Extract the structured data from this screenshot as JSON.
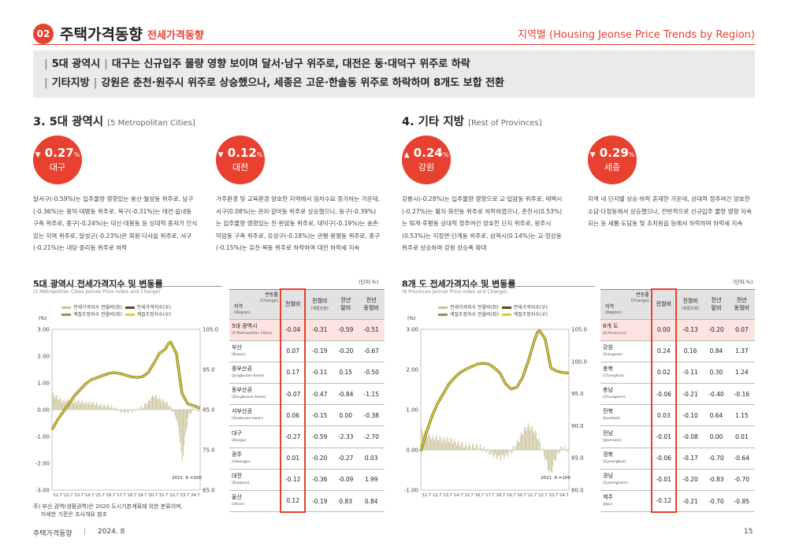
{
  "header": {
    "section_no": "02",
    "title": "주택가격동향",
    "subtitle": "전세가격동향",
    "right": "지역별 (Housing Jeonse Price Trends by Region)"
  },
  "summary": [
    {
      "tag": "5대 광역시",
      "text": "대구는 신규입주 물량 영향 보이며 달서·남구 위주로, 대전은 동·대덕구 위주로 하락"
    },
    {
      "tag": "기타지방",
      "text": "강원은 춘천·원주시 위주로 상승했으나, 세종은 고운·한솔동 위주로 하락하며 8개도 보합 전환"
    }
  ],
  "left": {
    "title": "3. 5대 광역시",
    "title_en": "[5 Metropolitan Cities]",
    "cards": [
      {
        "arrow": "▼",
        "value": "0.27",
        "unit": "%",
        "region": "대구",
        "text": "달서구(-0.59%)는 입주물량 영향있는 용산·월성동 위주로, 남구(-0.36%)는 봉덕·대명동 위주로, 북구(-0.31%)는 태전·읍내동 구축 위주로, 중구(-0.24%)는 대신·대봉동 등 상대적 중저가 인식있는 지역 위주로, 달성군(-0.23%)은 화원·다사읍 위주로, 서구(-0.21%)는 내당·중리동 위주로 하락"
      },
      {
        "arrow": "▼",
        "value": "0.12",
        "unit": "%",
        "region": "대전",
        "text": "거주환경 및 교육환경 양호한 지역에서 임차수요 증가하는 가운데, 서구(0.08%)는 관저·갈마동 위주로 상승했으나, 동구(-0.39%)는 입주물량 영향있는 천·판암동 위주로, 대덕구(-0.19%)는 송촌·덕암동 구축 위주로, 유성구(-0.18%)는 관평·봉명동 위주로, 중구(-0.15%)는 유천·목동 위주로 하락하며 대전 하락세 지속"
      }
    ],
    "chart": {
      "title": "5대 광역시 전세가격지수 및 변동률",
      "subtitle": "(5 Metropolitan Cities Jeonse Price Index and Change)",
      "legend": [
        "전세가격지수 전월비(좌)",
        "전세가격지수(우)",
        "계절조정지수 전월비(좌)",
        "계절조정지수(우)"
      ],
      "left_unit": "(%)",
      "note": "2021. 6 =100"
    },
    "table": {
      "unit": "(단위:%)",
      "head": {
        "change": "변동률",
        "change_en": "(Change)",
        "region": "지역",
        "region_en": "(Region)",
        "c1": "전월비",
        "c2": "전월비",
        "c2_sub": "(계절조정)",
        "c3": "전년\n말비",
        "c4": "전년\n동월비"
      },
      "rows": [
        {
          "name": "5대 광역시",
          "en": "(5 Metropolitan Cities)",
          "v": [
            "-0.04",
            "-0.31",
            "-0.59",
            "-0.51"
          ],
          "hl": true
        },
        {
          "name": "부산",
          "en": "(Busan)",
          "v": [
            "0.07",
            "-0.19",
            "-0.20",
            "-0.67"
          ]
        },
        {
          "name": "중부산권",
          "en": "(Jungbusan-kwon)",
          "v": [
            "0.17",
            "-0.11",
            "0.15",
            "-0.50"
          ]
        },
        {
          "name": "동부산권",
          "en": "(Dongbusan-kwon)",
          "v": [
            "-0.07",
            "-0.47",
            "-0.84",
            "-1.15"
          ]
        },
        {
          "name": "서부산권",
          "en": "(Seobusan-kwon)",
          "v": [
            "0.06",
            "-0.15",
            "0.00",
            "-0.38"
          ]
        },
        {
          "name": "대구",
          "en": "(Daegu)",
          "v": [
            "-0.27",
            "-0.59",
            "-2.33",
            "-2.70"
          ]
        },
        {
          "name": "광주",
          "en": "(Gwangju)",
          "v": [
            "0.01",
            "-0.20",
            "-0.27",
            "0.03"
          ]
        },
        {
          "name": "대전",
          "en": "(Daejeon)",
          "v": [
            "-0.12",
            "-0.36",
            "-0.09",
            "1.99"
          ]
        },
        {
          "name": "울산",
          "en": "(Ulsan)",
          "v": [
            "0.12",
            "-0.19",
            "0.83",
            "0.84"
          ]
        }
      ]
    },
    "footnote": [
      "주) 부산 권역(생활권역)은 2020 도시기본계획에 의한 분류이며,",
      "자세한 기준은 조사개요 참조"
    ]
  },
  "right": {
    "title": "4. 기타 지방",
    "title_en": "[Rest of Provinces]",
    "cards": [
      {
        "arrow": "▲",
        "value": "0.24",
        "unit": "%",
        "region": "강원",
        "text": "강릉시(-0.28%)는 입주물량 영향으로 교·입암동 위주로, 태백시(-0.27%)는 황지·화전동 위주로 하락하였으나, 춘천시(0.53%)는 퇴계·후평동 상대적 정주여건 양호한 단지 위주로, 원주시(0.53%)는 지정면·단계동 위주로, 삼척시(0.14%)는 교·정상동 위주로 상승하며 강원 상승폭 확대"
      },
      {
        "arrow": "▼",
        "value": "0.29",
        "unit": "%",
        "region": "세종",
        "text": "지역 내 단지별 상승·하락 혼재한 가운데, 상대적 정주여건 양호한 소담·다정동에서 상승했으나, 전반적으로 신규입주 물량 영향 지속되는 등 새롬·도담동 및 조치원읍 등에서 하락하며 하락세 지속"
      }
    ],
    "chart": {
      "title": "8개 도 전세가격지수 및 변동률",
      "subtitle": "(8 Provinces Jeonse Price Index and Change)",
      "legend": [
        "전세가격지수 전월비(좌)",
        "전세가격지수(우)",
        "계절조정지수 전월비(좌)",
        "계절조정지수(우)"
      ],
      "left_unit": "(%)",
      "note": "2021. 6 =100"
    },
    "table": {
      "unit": "(단위:%)",
      "head": {
        "change": "변동률",
        "change_en": "(Change)",
        "region": "지역",
        "region_en": "(Region)",
        "c1": "전월비",
        "c2": "전월비",
        "c2_sub": "(계절조정)",
        "c3": "전년\n말비",
        "c4": "전년\n동월비"
      },
      "rows": [
        {
          "name": "8개 도",
          "en": "(8 Provinces)",
          "v": [
            "0.00",
            "-0.13",
            "-0.20",
            "0.07"
          ],
          "hl": true
        },
        {
          "name": "강원",
          "en": "(Gangwon)",
          "v": [
            "0.24",
            "0.16",
            "0.84",
            "1.37"
          ]
        },
        {
          "name": "충북",
          "en": "(Chungbuk)",
          "v": [
            "0.02",
            "-0.11",
            "0.30",
            "1.24"
          ]
        },
        {
          "name": "충남",
          "en": "(Chungnam)",
          "v": [
            "-0.06",
            "-0.21",
            "-0.40",
            "-0.16"
          ]
        },
        {
          "name": "전북",
          "en": "(Jeonbuk)",
          "v": [
            "0.03",
            "-0.10",
            "0.64",
            "1.15"
          ]
        },
        {
          "name": "전남",
          "en": "(Jeonnam)",
          "v": [
            "-0.01",
            "-0.08",
            "0.00",
            "0.01"
          ]
        },
        {
          "name": "경북",
          "en": "(Gyeongbuk)",
          "v": [
            "-0.06",
            "-0.17",
            "-0.70",
            "-0.64"
          ]
        },
        {
          "name": "경남",
          "en": "(Gyeongnam)",
          "v": [
            "-0.01",
            "-0.20",
            "-0.83",
            "-0.70"
          ]
        },
        {
          "name": "제주",
          "en": "(Jeju)",
          "v": [
            "-0.12",
            "-0.21",
            "-0.70",
            "-0.85"
          ]
        }
      ]
    }
  },
  "footer": {
    "left": "주택가격동향",
    "sep": "|",
    "date": "2024. 8",
    "page": "15"
  },
  "colors": {
    "accent": "#e8412f",
    "bar": "#c9c49a",
    "line": "#d9cf2c",
    "line_dark": "#5a4a1e",
    "hl_row": "#fce4e0"
  },
  "chart_data": [
    {
      "type": "line",
      "title": "5대 광역시 전세가격지수 및 변동률",
      "x_ticks": [
        "'11.7",
        "'12.7",
        "'13.7",
        "'14.7",
        "'15.7",
        "'16.7",
        "'17.7",
        "'18.7",
        "'19.7",
        "'20.7",
        "'21.7",
        "'22.7",
        "'23.7",
        "'24.7"
      ],
      "y_left": {
        "ticks": [
          "3.00",
          "2.00",
          "1.00",
          "0.00",
          "-1.00",
          "-2.00",
          "-3.00"
        ],
        "range": [
          -3,
          3
        ]
      },
      "y_right": {
        "ticks": [
          "105.0",
          "95.0",
          "85.0",
          "75.0",
          "65.0"
        ],
        "range": [
          65,
          105
        ]
      },
      "series": [
        {
          "name": "전세가격지수(우)",
          "axis": "right",
          "x": [
            2011.5,
            2012.0,
            2012.5,
            2013.0,
            2013.5,
            2014.0,
            2014.5,
            2015.0,
            2015.5,
            2016.0,
            2016.5,
            2017.0,
            2017.5,
            2018.0,
            2018.5,
            2019.0,
            2019.5,
            2020.0,
            2020.5,
            2021.0,
            2021.5,
            2021.8,
            2022.0,
            2022.5,
            2023.0,
            2023.5,
            2024.0,
            2024.6
          ],
          "y": [
            80.0,
            82.5,
            84.5,
            86.5,
            88.5,
            90.0,
            91.5,
            92.5,
            93.0,
            93.5,
            94.0,
            94.2,
            94.0,
            93.6,
            93.2,
            93.0,
            93.2,
            94.2,
            96.5,
            99.0,
            100.0,
            101.5,
            101.8,
            99.0,
            89.0,
            86.5,
            86.0,
            85.4
          ]
        },
        {
          "name": "전세가격지수 전월비(좌)",
          "axis": "left",
          "type": "bar",
          "x": [
            2011.5,
            2012.0,
            2012.5,
            2013.0,
            2013.5,
            2014.0,
            2014.5,
            2015.0,
            2015.5,
            2016.0,
            2016.5,
            2017.0,
            2017.5,
            2018.0,
            2018.5,
            2019.0,
            2019.5,
            2020.0,
            2020.5,
            2021.0,
            2021.5,
            2022.0,
            2022.5,
            2022.8,
            2023.0,
            2023.3,
            2023.6,
            2024.0,
            2024.6
          ],
          "y": [
            0.6,
            0.45,
            0.3,
            0.35,
            0.3,
            0.3,
            0.25,
            0.25,
            0.2,
            0.15,
            0.15,
            0.05,
            -0.05,
            -0.1,
            -0.05,
            0.0,
            0.1,
            0.3,
            0.55,
            0.4,
            0.3,
            0.1,
            -0.3,
            -1.0,
            -2.0,
            -1.0,
            -0.2,
            0.05,
            -0.04
          ]
        }
      ]
    },
    {
      "type": "line",
      "title": "8개 도 전세가격지수 및 변동률",
      "x_ticks": [
        "'11.7",
        "'12.7",
        "'13.7",
        "'14.7",
        "'15.7",
        "'16.7",
        "'17.7",
        "'18.7",
        "'19.7",
        "'20.7",
        "'21.7",
        "'22.7",
        "'23.7",
        "'24.7"
      ],
      "y_left": {
        "ticks": [
          "3.00",
          "2.00",
          "1.00",
          "0.00",
          "-1.00"
        ],
        "range": [
          -1,
          3
        ]
      },
      "y_right": {
        "ticks": [
          "105.0",
          "100.0",
          "95.0",
          "90.0",
          "85.0",
          "80.0"
        ],
        "range": [
          80,
          105
        ]
      },
      "series": [
        {
          "name": "전세가격지수(우)",
          "axis": "right",
          "x": [
            2011.5,
            2012.0,
            2012.5,
            2013.0,
            2013.5,
            2014.0,
            2014.5,
            2015.0,
            2015.5,
            2016.0,
            2016.5,
            2017.0,
            2017.5,
            2018.0,
            2018.5,
            2019.0,
            2019.5,
            2020.0,
            2020.5,
            2021.0,
            2021.5,
            2021.8,
            2022.0,
            2022.5,
            2023.0,
            2023.5,
            2024.0,
            2024.6
          ],
          "y": [
            86.0,
            89.0,
            91.5,
            93.5,
            95.0,
            96.5,
            97.5,
            98.3,
            98.8,
            99.2,
            99.6,
            99.7,
            99.6,
            99.0,
            98.2,
            96.5,
            95.7,
            96.0,
            97.5,
            100.0,
            103.0,
            104.5,
            104.8,
            103.5,
            99.0,
            98.5,
            98.3,
            98.2
          ]
        },
        {
          "name": "전세가격지수 전월비(좌)",
          "axis": "left",
          "type": "bar",
          "x": [
            2011.5,
            2012.0,
            2012.5,
            2013.0,
            2013.5,
            2014.0,
            2014.5,
            2015.0,
            2015.5,
            2016.0,
            2016.5,
            2017.0,
            2017.5,
            2018.0,
            2018.5,
            2019.0,
            2019.5,
            2020.0,
            2020.5,
            2021.0,
            2021.5,
            2022.0,
            2022.5,
            2022.8,
            2023.0,
            2023.3,
            2023.6,
            2024.0,
            2024.6
          ],
          "y": [
            0.5,
            0.4,
            0.3,
            0.3,
            0.25,
            0.25,
            0.2,
            0.15,
            0.1,
            0.1,
            0.08,
            0.03,
            -0.05,
            -0.15,
            -0.2,
            -0.15,
            -0.05,
            0.15,
            0.45,
            0.6,
            0.5,
            0.2,
            -0.2,
            -0.5,
            -0.6,
            -0.3,
            -0.1,
            0.05,
            0.0
          ]
        }
      ]
    }
  ]
}
